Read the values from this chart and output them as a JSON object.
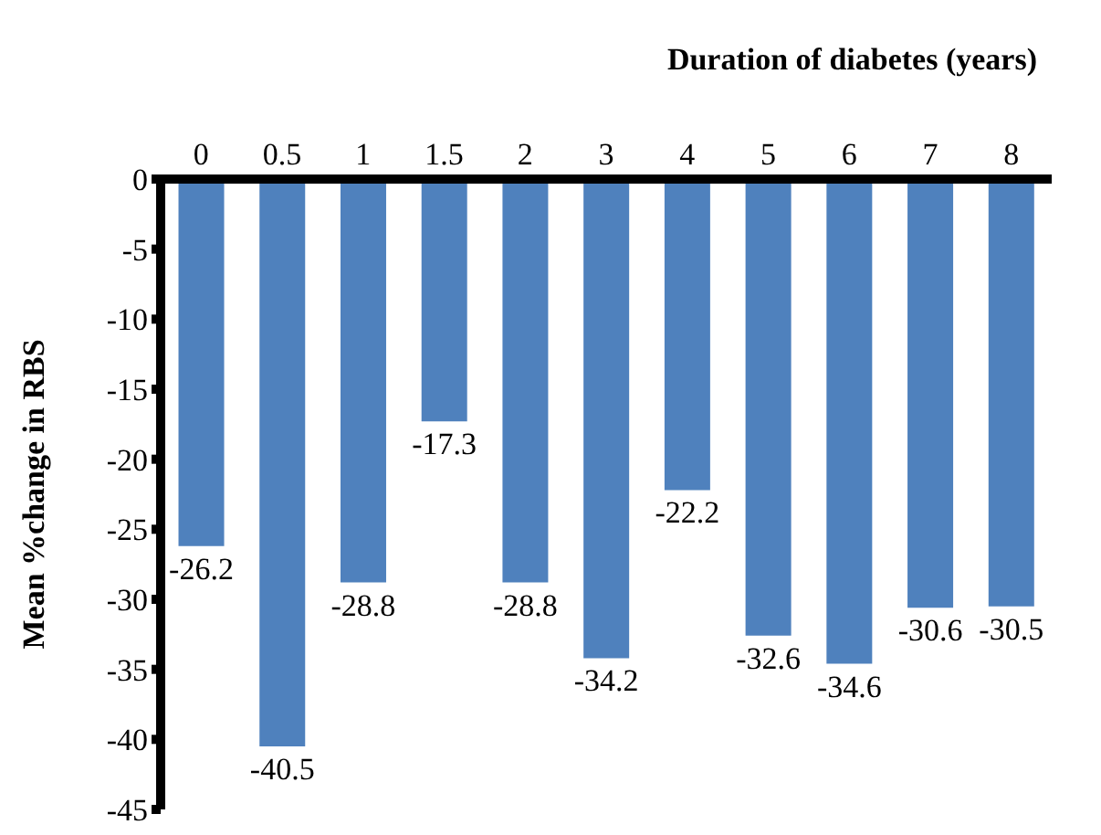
{
  "chart_data": {
    "type": "bar",
    "xlabel": "Duration of diabetes (years)",
    "ylabel": "Mean %change in RBS",
    "categories": [
      "0",
      "0.5",
      "1",
      "1.5",
      "2",
      "3",
      "4",
      "5",
      "6",
      "7",
      "8"
    ],
    "values": [
      -26.2,
      -40.5,
      -28.8,
      -17.3,
      -28.8,
      -34.2,
      -22.2,
      -32.6,
      -34.6,
      -30.6,
      -30.5
    ],
    "color": "#4f81bd",
    "ylim": [
      -45,
      0
    ],
    "yticks": [
      0,
      -5,
      -10,
      -15,
      -20,
      -25,
      -30,
      -35,
      -40,
      -45
    ],
    "data_labels": true,
    "grid": false
  }
}
